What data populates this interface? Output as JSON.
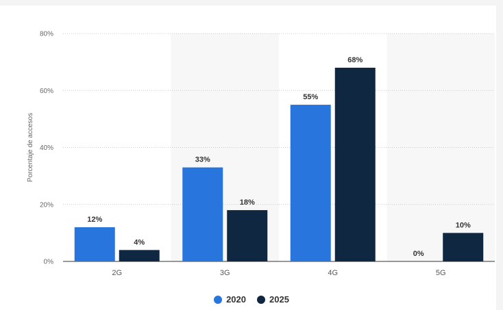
{
  "chart_data": {
    "type": "bar",
    "categories": [
      "2G",
      "3G",
      "4G",
      "5G"
    ],
    "series": [
      {
        "name": "2020",
        "values": [
          12,
          33,
          55,
          0
        ],
        "color": "#2876dd"
      },
      {
        "name": "2025",
        "values": [
          4,
          18,
          68,
          10
        ],
        "color": "#0f2740"
      }
    ],
    "ylabel": "Porcentaje de accesos",
    "xlabel": "",
    "ylim": [
      0,
      80
    ],
    "yticks": [
      0,
      20,
      40,
      60,
      80
    ],
    "ytick_labels": [
      "0%",
      "20%",
      "40%",
      "60%",
      "80%"
    ],
    "value_labels": [
      [
        "12%",
        "33%",
        "55%",
        "0%"
      ],
      [
        "4%",
        "18%",
        "68%",
        "10%"
      ]
    ],
    "grid": true,
    "legend_position": "bottom-center"
  }
}
